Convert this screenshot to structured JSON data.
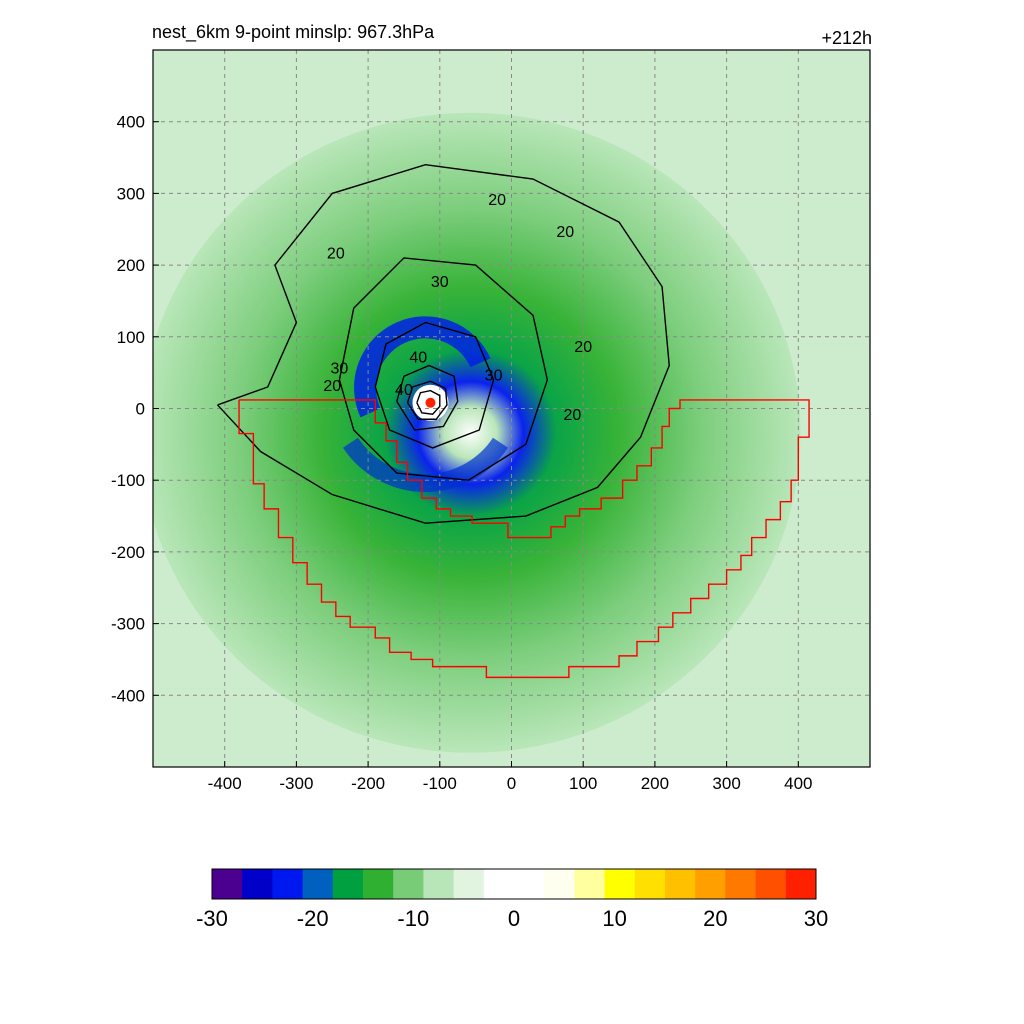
{
  "chart_data": {
    "type": "heatmap",
    "title_left": "nest_6km  9-point minslp: 967.3hPa",
    "title_right": "+212h",
    "xlim": [
      -500,
      500
    ],
    "ylim": [
      -500,
      500
    ],
    "x_ticks": [
      -400,
      -300,
      -200,
      -100,
      0,
      100,
      200,
      300,
      400
    ],
    "y_ticks": [
      400,
      300,
      200,
      100,
      0,
      -100,
      -200,
      -300,
      -400
    ],
    "grid": true,
    "storm_center": {
      "x": -113,
      "y": 8
    },
    "contour_levels": [
      20,
      30,
      40
    ],
    "colorbar": {
      "range": [
        -30,
        30
      ],
      "ticks": [
        -30,
        -20,
        -10,
        0,
        10,
        20,
        30
      ],
      "colors": [
        "#4b0090",
        "#0000c8",
        "#0018f0",
        "#0060c0",
        "#00a040",
        "#30b030",
        "#78cc78",
        "#b8e6b8",
        "#e0f4e0",
        "#ffffff",
        "#ffffff",
        "#fffff0",
        "#ffffa0",
        "#ffff00",
        "#ffe000",
        "#ffc000",
        "#ffa000",
        "#ff7800",
        "#ff5000",
        "#ff2000"
      ]
    },
    "region_outline": [
      [
        -380,
        12
      ],
      [
        -380,
        -35
      ],
      [
        -360,
        -35
      ],
      [
        -360,
        -105
      ],
      [
        -345,
        -105
      ],
      [
        -345,
        -140
      ],
      [
        -325,
        -140
      ],
      [
        -325,
        -180
      ],
      [
        -305,
        -180
      ],
      [
        -305,
        -215
      ],
      [
        -285,
        -215
      ],
      [
        -285,
        -245
      ],
      [
        -265,
        -245
      ],
      [
        -265,
        -270
      ],
      [
        -245,
        -270
      ],
      [
        -245,
        -290
      ],
      [
        -225,
        -290
      ],
      [
        -225,
        -305
      ],
      [
        -190,
        -305
      ],
      [
        -190,
        -320
      ],
      [
        -170,
        -320
      ],
      [
        -170,
        -340
      ],
      [
        -140,
        -340
      ],
      [
        -140,
        -350
      ],
      [
        -110,
        -350
      ],
      [
        -110,
        -360
      ],
      [
        -35,
        -360
      ],
      [
        -35,
        -375
      ],
      [
        80,
        -375
      ],
      [
        80,
        -360
      ],
      [
        150,
        -360
      ],
      [
        150,
        -345
      ],
      [
        175,
        -345
      ],
      [
        175,
        -325
      ],
      [
        205,
        -325
      ],
      [
        205,
        -305
      ],
      [
        225,
        -305
      ],
      [
        225,
        -285
      ],
      [
        250,
        -285
      ],
      [
        250,
        -265
      ],
      [
        275,
        -265
      ],
      [
        275,
        -245
      ],
      [
        300,
        -245
      ],
      [
        300,
        -225
      ],
      [
        320,
        -225
      ],
      [
        320,
        -205
      ],
      [
        335,
        -205
      ],
      [
        335,
        -180
      ],
      [
        355,
        -180
      ],
      [
        355,
        -155
      ],
      [
        375,
        -155
      ],
      [
        375,
        -130
      ],
      [
        390,
        -130
      ],
      [
        390,
        -100
      ],
      [
        400,
        -100
      ],
      [
        400,
        -40
      ],
      [
        415,
        -40
      ],
      [
        415,
        12
      ],
      [
        235,
        12
      ],
      [
        235,
        0
      ],
      [
        220,
        0
      ],
      [
        220,
        -25
      ],
      [
        210,
        -25
      ],
      [
        210,
        -55
      ],
      [
        195,
        -55
      ],
      [
        195,
        -80
      ],
      [
        175,
        -80
      ],
      [
        175,
        -100
      ],
      [
        155,
        -100
      ],
      [
        155,
        -125
      ],
      [
        125,
        -125
      ],
      [
        125,
        -140
      ],
      [
        95,
        -140
      ],
      [
        95,
        -150
      ],
      [
        75,
        -150
      ],
      [
        75,
        -165
      ],
      [
        55,
        -165
      ],
      [
        55,
        -180
      ],
      [
        -5,
        -180
      ],
      [
        -5,
        -160
      ],
      [
        -55,
        -160
      ],
      [
        -55,
        -150
      ],
      [
        -85,
        -150
      ],
      [
        -85,
        -140
      ],
      [
        -105,
        -140
      ],
      [
        -105,
        -125
      ],
      [
        -125,
        -125
      ],
      [
        -125,
        -100
      ],
      [
        -145,
        -100
      ],
      [
        -145,
        -75
      ],
      [
        -160,
        -75
      ],
      [
        -160,
        -45
      ],
      [
        -175,
        -45
      ],
      [
        -175,
        -20
      ],
      [
        -190,
        -20
      ],
      [
        -190,
        12
      ],
      [
        -380,
        12
      ]
    ],
    "contours": [
      {
        "level": 20,
        "pts": [
          [
            -410,
            5
          ],
          [
            -340,
            30
          ],
          [
            -300,
            120
          ],
          [
            -330,
            200
          ],
          [
            -250,
            300
          ],
          [
            -120,
            340
          ],
          [
            30,
            320
          ],
          [
            150,
            260
          ],
          [
            210,
            170
          ],
          [
            220,
            60
          ],
          [
            180,
            -40
          ],
          [
            120,
            -110
          ],
          [
            20,
            -150
          ],
          [
            -120,
            -160
          ],
          [
            -250,
            -120
          ],
          [
            -350,
            -60
          ],
          [
            -410,
            5
          ]
        ]
      },
      {
        "level": 30,
        "pts": [
          [
            -240,
            40
          ],
          [
            -220,
            140
          ],
          [
            -150,
            210
          ],
          [
            -50,
            200
          ],
          [
            30,
            130
          ],
          [
            50,
            40
          ],
          [
            20,
            -50
          ],
          [
            -60,
            -100
          ],
          [
            -160,
            -90
          ],
          [
            -220,
            -30
          ],
          [
            -240,
            40
          ]
        ]
      },
      {
        "level": 40,
        "pts": [
          [
            -190,
            30
          ],
          [
            -175,
            90
          ],
          [
            -120,
            120
          ],
          [
            -50,
            100
          ],
          [
            -25,
            40
          ],
          [
            -45,
            -30
          ],
          [
            -110,
            -55
          ],
          [
            -170,
            -30
          ],
          [
            -190,
            30
          ]
        ]
      },
      {
        "level": 40,
        "pts": [
          [
            -160,
            10
          ],
          [
            -150,
            45
          ],
          [
            -115,
            60
          ],
          [
            -80,
            45
          ],
          [
            -75,
            10
          ],
          [
            -95,
            -25
          ],
          [
            -135,
            -30
          ],
          [
            -160,
            10
          ]
        ]
      },
      {
        "level": 40,
        "pts": [
          [
            -145,
            8
          ],
          [
            -138,
            30
          ],
          [
            -113,
            38
          ],
          [
            -92,
            28
          ],
          [
            -90,
            5
          ],
          [
            -105,
            -15
          ],
          [
            -130,
            -15
          ],
          [
            -145,
            8
          ]
        ]
      },
      {
        "level": 40,
        "pts": [
          [
            -132,
            8
          ],
          [
            -127,
            22
          ],
          [
            -113,
            25
          ],
          [
            -100,
            18
          ],
          [
            -100,
            3
          ],
          [
            -110,
            -8
          ],
          [
            -125,
            -6
          ],
          [
            -132,
            8
          ]
        ]
      }
    ],
    "contour_label_positions": [
      {
        "text": "20",
        "x": -245,
        "y": 215
      },
      {
        "text": "20",
        "x": -250,
        "y": 30
      },
      {
        "text": "20",
        "x": -20,
        "y": 290
      },
      {
        "text": "20",
        "x": 75,
        "y": 245
      },
      {
        "text": "20",
        "x": 100,
        "y": 85
      },
      {
        "text": "20",
        "x": 85,
        "y": -10
      },
      {
        "text": "30",
        "x": -240,
        "y": 55
      },
      {
        "text": "30",
        "x": -100,
        "y": 175
      },
      {
        "text": "30",
        "x": -25,
        "y": 45
      },
      {
        "text": "40",
        "x": -130,
        "y": 70
      },
      {
        "text": "40",
        "x": -150,
        "y": 25
      }
    ]
  }
}
